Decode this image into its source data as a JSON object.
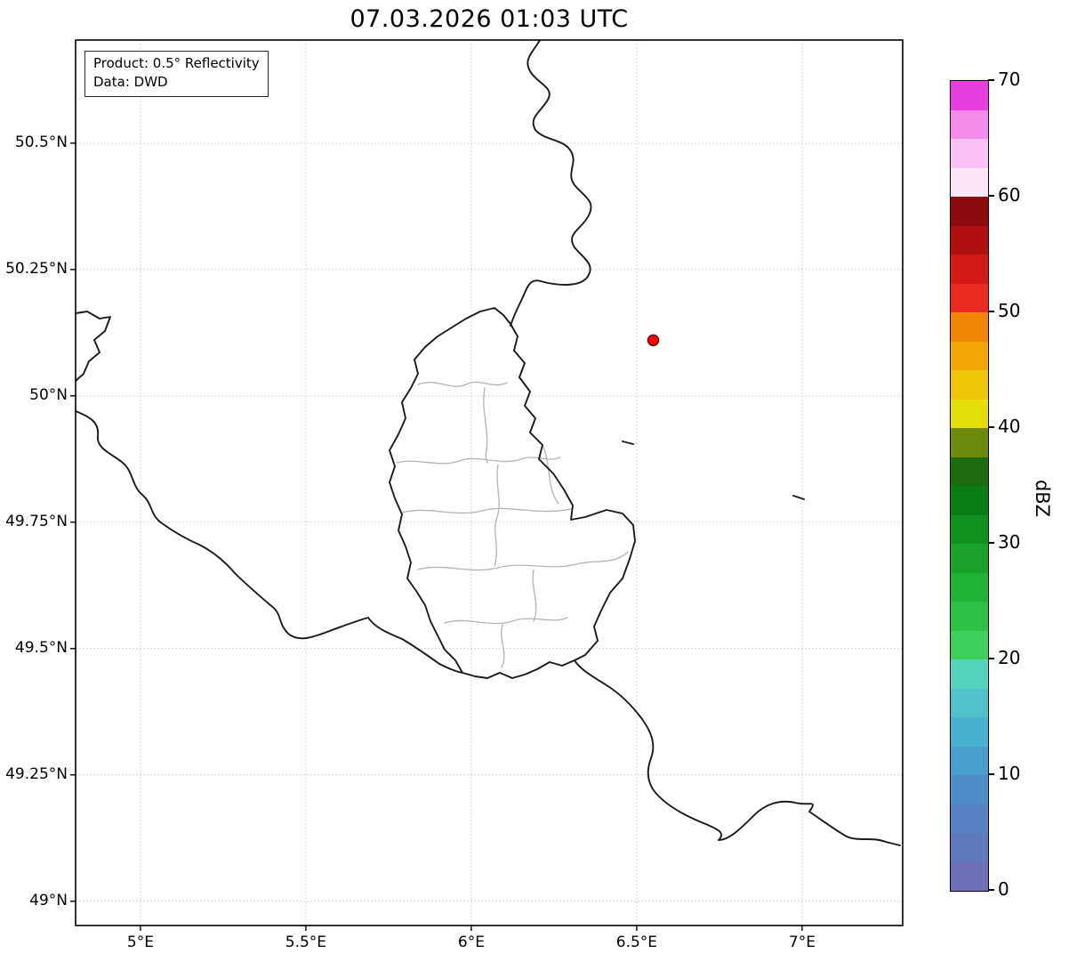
{
  "title": "07.03.2026 01:03 UTC",
  "legend": {
    "line1": "Product: 0.5° Reflectivity",
    "line2": "Data: DWD"
  },
  "chart_data": {
    "type": "map",
    "title": "07.03.2026 01:03 UTC",
    "description": "Weather radar reflectivity map over the Luxembourg / western Germany region; no precipitation echoes visible",
    "lon_range": [
      4.804,
      7.304
    ],
    "lat_range": [
      48.952,
      50.704
    ],
    "x_ticks": [
      {
        "value": 5.0,
        "label": "5°E"
      },
      {
        "value": 5.5,
        "label": "5.5°E"
      },
      {
        "value": 6.0,
        "label": "6°E"
      },
      {
        "value": 6.5,
        "label": "6.5°E"
      },
      {
        "value": 7.0,
        "label": "7°E"
      }
    ],
    "y_ticks": [
      {
        "value": 49.0,
        "label": "49°N"
      },
      {
        "value": 49.25,
        "label": "49.25°N"
      },
      {
        "value": 49.5,
        "label": "49.5°N"
      },
      {
        "value": 49.75,
        "label": "49.75°N"
      },
      {
        "value": 50.0,
        "label": "50°N"
      },
      {
        "value": 50.25,
        "label": "50.25°N"
      },
      {
        "value": 50.5,
        "label": "50.5°N"
      }
    ],
    "marker": {
      "lon": 6.55,
      "lat": 50.11,
      "fill": "#ff0000",
      "edge": "#7a0000",
      "name": "radar-site"
    },
    "border_colors": {
      "countries": "#1a1a1a",
      "districts": "#b3b3b3"
    },
    "grid": true,
    "colorbar": {
      "label": "dBZ",
      "min": 0,
      "max": 70,
      "ticks": [
        0,
        10,
        20,
        30,
        40,
        50,
        60,
        70
      ],
      "segments": [
        {
          "from": 0,
          "to": 2.5,
          "color": "#6e6fb5"
        },
        {
          "from": 2.5,
          "to": 5,
          "color": "#6278bd"
        },
        {
          "from": 5,
          "to": 7.5,
          "color": "#5682c4"
        },
        {
          "from": 7.5,
          "to": 10,
          "color": "#4d8eca"
        },
        {
          "from": 10,
          "to": 12.5,
          "color": "#489ecd"
        },
        {
          "from": 12.5,
          "to": 15,
          "color": "#4ab0cf"
        },
        {
          "from": 15,
          "to": 17.5,
          "color": "#4fc2ca"
        },
        {
          "from": 17.5,
          "to": 20,
          "color": "#56d3bc"
        },
        {
          "from": 20,
          "to": 22.5,
          "color": "#3ecf5c"
        },
        {
          "from": 22.5,
          "to": 25,
          "color": "#2dc247"
        },
        {
          "from": 25,
          "to": 27.5,
          "color": "#21b236"
        },
        {
          "from": 27.5,
          "to": 30,
          "color": "#18a229"
        },
        {
          "from": 30,
          "to": 32.5,
          "color": "#10901e"
        },
        {
          "from": 32.5,
          "to": 35,
          "color": "#0b7d15"
        },
        {
          "from": 35,
          "to": 37.5,
          "color": "#1d6b0f"
        },
        {
          "from": 37.5,
          "to": 40,
          "color": "#6e8a0b"
        },
        {
          "from": 40,
          "to": 42.5,
          "color": "#e3de0c"
        },
        {
          "from": 42.5,
          "to": 45,
          "color": "#edc50a"
        },
        {
          "from": 45,
          "to": 47.5,
          "color": "#f2a607"
        },
        {
          "from": 47.5,
          "to": 50,
          "color": "#f38605"
        },
        {
          "from": 50,
          "to": 52.5,
          "color": "#ea2b1f"
        },
        {
          "from": 52.5,
          "to": 55,
          "color": "#d31a16"
        },
        {
          "from": 55,
          "to": 57.5,
          "color": "#b21010"
        },
        {
          "from": 57.5,
          "to": 60,
          "color": "#8d0a0d"
        },
        {
          "from": 60,
          "to": 62.5,
          "color": "#fce7f9"
        },
        {
          "from": 62.5,
          "to": 65,
          "color": "#f9c2f2"
        },
        {
          "from": 65,
          "to": 67.5,
          "color": "#f48ceb"
        },
        {
          "from": 67.5,
          "to": 70,
          "color": "#e93ede"
        }
      ]
    }
  }
}
